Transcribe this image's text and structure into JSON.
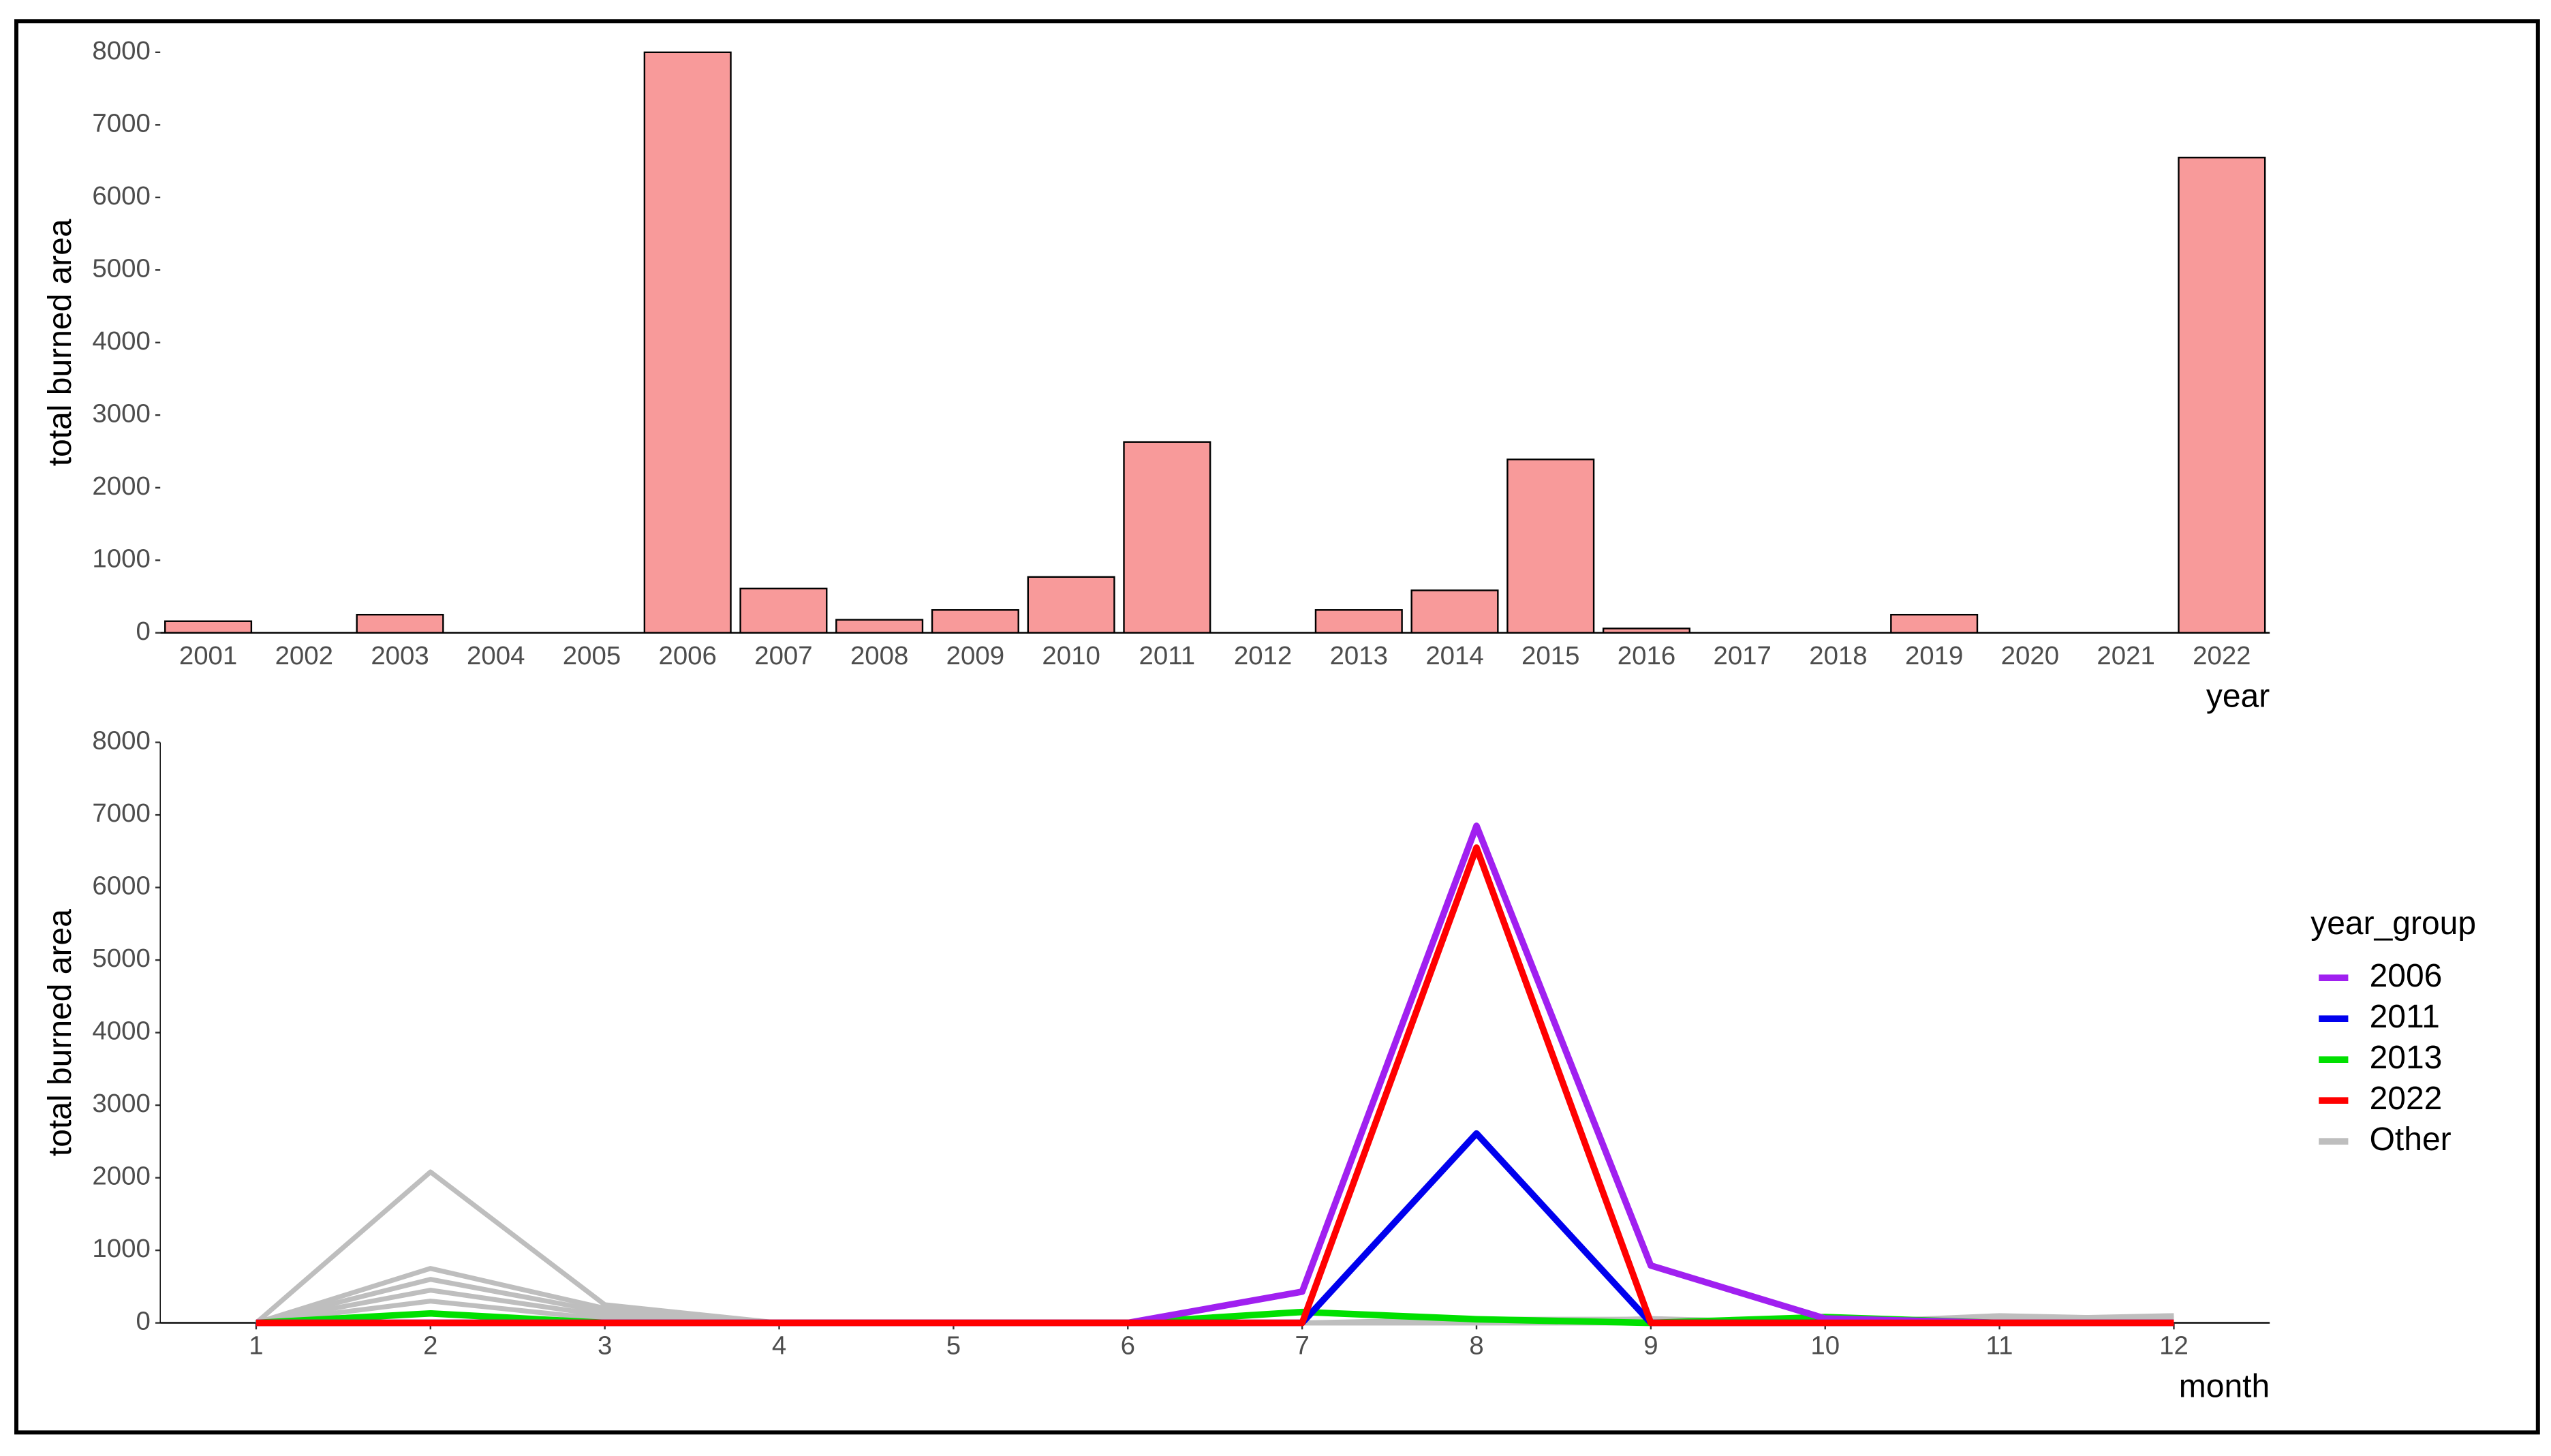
{
  "chart_data": [
    {
      "type": "bar",
      "y_label": "total burned area",
      "x_label": "year",
      "categories": [
        "2001",
        "2002",
        "2003",
        "2004",
        "2005",
        "2006",
        "2007",
        "2008",
        "2009",
        "2010",
        "2011",
        "2012",
        "2013",
        "2014",
        "2015",
        "2016",
        "2017",
        "2018",
        "2019",
        "2020",
        "2021",
        "2022"
      ],
      "values": [
        160,
        0,
        250,
        0,
        0,
        8000,
        610,
        180,
        315,
        770,
        2630,
        0,
        315,
        585,
        2390,
        60,
        0,
        0,
        250,
        0,
        0,
        6550
      ],
      "color": "#f89a9a",
      "ylim": [
        0,
        8000
      ],
      "yticks": [
        0,
        1000,
        2000,
        3000,
        4000,
        5000,
        6000,
        7000,
        8000
      ]
    },
    {
      "type": "line",
      "y_label": "total burned area",
      "x_label": "month",
      "legend_title": "year_group",
      "legend": "right",
      "x": [
        1,
        2,
        3,
        4,
        5,
        6,
        7,
        8,
        9,
        10,
        11,
        12
      ],
      "series": [
        {
          "name": "Other",
          "color": "#bebebe",
          "values": [
            0,
            2080,
            250,
            0,
            0,
            0,
            0,
            50,
            50,
            0,
            100,
            50
          ]
        },
        {
          "name": "Other",
          "color": "#bebebe",
          "values": [
            0,
            750,
            200,
            0,
            0,
            0,
            0,
            0,
            60,
            0,
            50,
            100
          ]
        },
        {
          "name": "Other",
          "color": "#bebebe",
          "values": [
            0,
            600,
            150,
            0,
            0,
            0,
            0,
            0,
            0,
            0,
            0,
            0
          ]
        },
        {
          "name": "Other",
          "color": "#bebebe",
          "values": [
            0,
            450,
            100,
            0,
            0,
            0,
            0,
            0,
            0,
            0,
            0,
            0
          ]
        },
        {
          "name": "Other",
          "color": "#bebebe",
          "values": [
            0,
            300,
            50,
            0,
            0,
            0,
            0,
            0,
            0,
            0,
            0,
            0
          ]
        },
        {
          "name": "2013",
          "color": "#00e000",
          "values": [
            0,
            130,
            0,
            0,
            0,
            0,
            150,
            50,
            0,
            80,
            0,
            0
          ]
        },
        {
          "name": "2011",
          "color": "#0000ee",
          "values": [
            0,
            0,
            0,
            0,
            0,
            0,
            0,
            2610,
            0,
            0,
            0,
            0
          ]
        },
        {
          "name": "2006",
          "color": "#a020f0",
          "values": [
            0,
            0,
            0,
            0,
            0,
            0,
            430,
            6850,
            790,
            60,
            0,
            0
          ]
        },
        {
          "name": "2022",
          "color": "#ff0000",
          "values": [
            0,
            0,
            0,
            0,
            0,
            0,
            0,
            6550,
            0,
            0,
            0,
            0
          ]
        }
      ],
      "legend_order": [
        "2006",
        "2011",
        "2013",
        "2022",
        "Other"
      ],
      "xlim": [
        0.45,
        12.55
      ],
      "xticks": [
        1,
        2,
        3,
        4,
        5,
        6,
        7,
        8,
        9,
        10,
        11,
        12
      ],
      "ylim": [
        0,
        8000
      ],
      "yticks": [
        0,
        1000,
        2000,
        3000,
        4000,
        5000,
        6000,
        7000,
        8000
      ]
    }
  ]
}
